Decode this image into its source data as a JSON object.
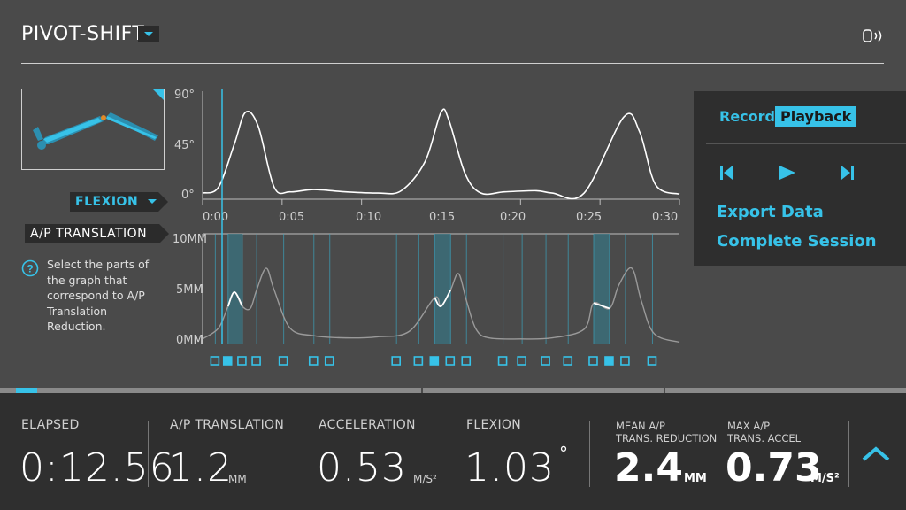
{
  "header": {
    "title": "PIVOT-SHIFT",
    "dropdown_icon": "caret-down-icon",
    "connection_icon": "sensor-signal-icon"
  },
  "tags": {
    "flexion": "FLEXION",
    "ap_translation": "A/P TRANSLATION"
  },
  "help": {
    "text": "Select the parts of the graph that correspond to A/P Translation Reduction."
  },
  "flexion_chart": {
    "y_ticks": [
      "90°",
      "45°",
      "0°"
    ],
    "x_ticks": [
      "0:00",
      "0:05",
      "0:10",
      "0:15",
      "0:20",
      "0:25",
      "0:30"
    ]
  },
  "ap_chart": {
    "y_ticks": [
      "10MM",
      "5MM",
      "0MM"
    ]
  },
  "playback_panel": {
    "record_label": "Record",
    "playback_label": "Playback",
    "export_label": "Export Data",
    "complete_label": "Complete Session"
  },
  "stats": {
    "elapsed_label": "ELAPSED",
    "elapsed_value": "0:12.56",
    "ap_label": "A/P TRANSLATION",
    "ap_value": "1.2",
    "ap_unit": "MM",
    "accel_label": "ACCELERATION",
    "accel_value": "0.53",
    "accel_unit": "M/S²",
    "flexion_label": "FLEXION",
    "flexion_value": "1.03",
    "flexion_unit": "°",
    "mean_label_1": "MEAN A/P",
    "mean_label_2": "TRANS. REDUCTION",
    "mean_value": "2.4",
    "mean_unit": "MM",
    "max_label_1": "MAX A/P",
    "max_label_2": "TRANS. ACCEL",
    "max_value": "0.73",
    "max_unit": "M/S²"
  },
  "colors": {
    "accent": "#37c2e8",
    "background": "#4a4a4a",
    "panel": "#2e2e2e"
  },
  "chart_data": [
    {
      "type": "line",
      "title": "",
      "xlabel": "",
      "ylabel": "",
      "ylim": [
        0,
        90
      ],
      "x_ticks": [
        "0:00",
        "0:05",
        "0:10",
        "0:15",
        "0:20",
        "0:25",
        "0:30"
      ],
      "series": [
        {
          "x": [
            0,
            1,
            2,
            2.7,
            3.5,
            4.5,
            5.5,
            7,
            9,
            11,
            12.5,
            14,
            15,
            15.5,
            16.5,
            17.5,
            19,
            21,
            22,
            24,
            26.5,
            27.5,
            28.5,
            30
          ],
          "values": [
            3,
            8,
            45,
            72,
            60,
            8,
            4,
            6,
            4,
            3,
            5,
            30,
            72,
            65,
            20,
            3,
            4,
            5,
            3,
            3,
            68,
            55,
            10,
            2
          ]
        }
      ]
    },
    {
      "type": "line",
      "title": "",
      "xlabel": "",
      "ylabel": "",
      "ylim": [
        0,
        10
      ],
      "series": [
        {
          "x": [
            0,
            1,
            1.6,
            2,
            2.5,
            3,
            3.4,
            4.0,
            4.5,
            5.5,
            7,
            9,
            11,
            13,
            14.6,
            15.0,
            15.6,
            16.1,
            16.6,
            17.2,
            18,
            20,
            22,
            24,
            24.6,
            25.6,
            26.2,
            27,
            27.6,
            28.4,
            30
          ],
          "values": [
            0.5,
            1.5,
            3.5,
            4.8,
            3.5,
            3.3,
            5,
            7,
            5,
            1.5,
            0.8,
            0.6,
            0.7,
            1.2,
            4.3,
            3.5,
            5,
            6.5,
            4,
            1.4,
            0.6,
            0.5,
            0.6,
            1.4,
            3.8,
            3.3,
            5.5,
            7,
            4,
            1,
            0.2
          ]
        }
      ],
      "highlight_regions_seconds": [
        [
          1.6,
          2.5
        ],
        [
          14.6,
          15.6
        ],
        [
          24.6,
          25.6
        ]
      ]
    }
  ]
}
